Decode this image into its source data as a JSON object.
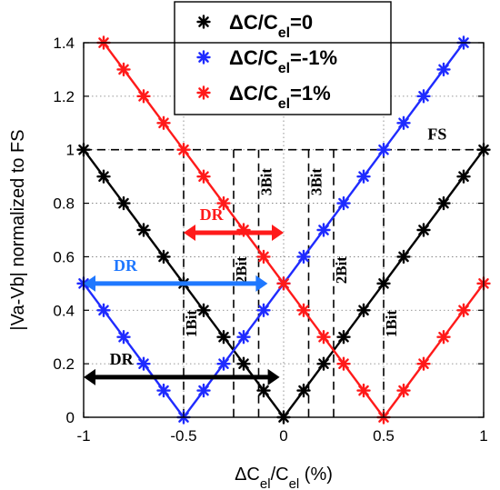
{
  "chart_data": {
    "type": "line",
    "xlabel": "ΔC_el/C_el (%)",
    "ylabel": "|Va-Vb| normalized to FS",
    "xlim": [
      -1,
      1
    ],
    "ylim": [
      0,
      1.4
    ],
    "x_ticks": [
      "-1",
      "-0.5",
      "0",
      "0.5",
      "1"
    ],
    "y_ticks": [
      "0",
      "0.2",
      "0.4",
      "0.6",
      "0.8",
      "1",
      "1.2",
      "1.4"
    ],
    "grid": true,
    "legend_position": "top-center",
    "x": [
      -1,
      -0.9,
      -0.8,
      -0.7,
      -0.6,
      -0.5,
      -0.4,
      -0.3,
      -0.2,
      -0.1,
      0,
      0.1,
      0.2,
      0.3,
      0.4,
      0.5,
      0.6,
      0.7,
      0.8,
      0.9,
      1
    ],
    "series": [
      {
        "name": "ΔC/C_el=0",
        "color": "#000000",
        "x": [
          -1,
          -0.9,
          -0.8,
          -0.7,
          -0.6,
          -0.5,
          -0.4,
          -0.3,
          -0.2,
          -0.1,
          0,
          0.1,
          0.2,
          0.3,
          0.4,
          0.5,
          0.6,
          0.7,
          0.8,
          0.9,
          1
        ],
        "values": [
          1,
          0.9,
          0.8,
          0.7,
          0.6,
          0.5,
          0.4,
          0.3,
          0.2,
          0.1,
          0,
          0.1,
          0.2,
          0.3,
          0.4,
          0.5,
          0.6,
          0.7,
          0.8,
          0.9,
          1
        ]
      },
      {
        "name": "ΔC/C_el=-1%",
        "color": "#1f2bff",
        "x": [
          -1,
          -0.9,
          -0.8,
          -0.7,
          -0.6,
          -0.5,
          -0.4,
          -0.3,
          -0.2,
          -0.1,
          0,
          0.1,
          0.2,
          0.3,
          0.4,
          0.5,
          0.6,
          0.7,
          0.8,
          0.9
        ],
        "values": [
          0.5,
          0.4,
          0.3,
          0.2,
          0.1,
          0,
          0.1,
          0.2,
          0.3,
          0.4,
          0.5,
          0.6,
          0.7,
          0.8,
          0.9,
          1,
          1.1,
          1.2,
          1.3,
          1.4
        ]
      },
      {
        "name": "ΔC/C_el=1%",
        "color": "#ff1a1a",
        "x": [
          -0.9,
          -0.8,
          -0.7,
          -0.6,
          -0.5,
          -0.4,
          -0.3,
          -0.2,
          -0.1,
          0,
          0.1,
          0.2,
          0.3,
          0.4,
          0.5,
          0.6,
          0.7,
          0.8,
          0.9,
          1
        ],
        "values": [
          1.4,
          1.3,
          1.2,
          1.1,
          1,
          0.9,
          0.8,
          0.7,
          0.6,
          0.5,
          0.4,
          0.3,
          0.2,
          0.1,
          0,
          0.1,
          0.2,
          0.3,
          0.4,
          0.5
        ]
      }
    ],
    "legend": [
      {
        "base": "ΔC/C",
        "sub": "el",
        "suffix": "=0",
        "color": "#000000"
      },
      {
        "base": "ΔC/C",
        "sub": "el",
        "suffix": "=-1%",
        "color": "#1f2bff"
      },
      {
        "base": "ΔC/C",
        "sub": "el",
        "suffix": "=1%",
        "color": "#ff1a1a"
      }
    ],
    "fs_level": {
      "value": 1,
      "label": "FS"
    },
    "bit_thresholds": [
      {
        "x": -0.5,
        "label": "1Bit"
      },
      {
        "x": -0.25,
        "label": "2Bit"
      },
      {
        "x": -0.125,
        "label": "3Bit"
      },
      {
        "x": 0.125,
        "label": "3Bit"
      },
      {
        "x": 0.25,
        "label": "2Bit"
      },
      {
        "x": 0.5,
        "label": "1Bit"
      }
    ],
    "dynamic_ranges": [
      {
        "label": "DR",
        "color": "#ff1a1a",
        "x_start": -0.5,
        "x_end": 0,
        "y": 0.69
      },
      {
        "label": "DR",
        "color": "#1f78ff",
        "x_start": -1,
        "x_end": -0.08,
        "y": 0.5
      },
      {
        "label": "DR",
        "color": "#000000",
        "x_start": -1,
        "x_end": -0.02,
        "y": 0.15
      }
    ]
  }
}
